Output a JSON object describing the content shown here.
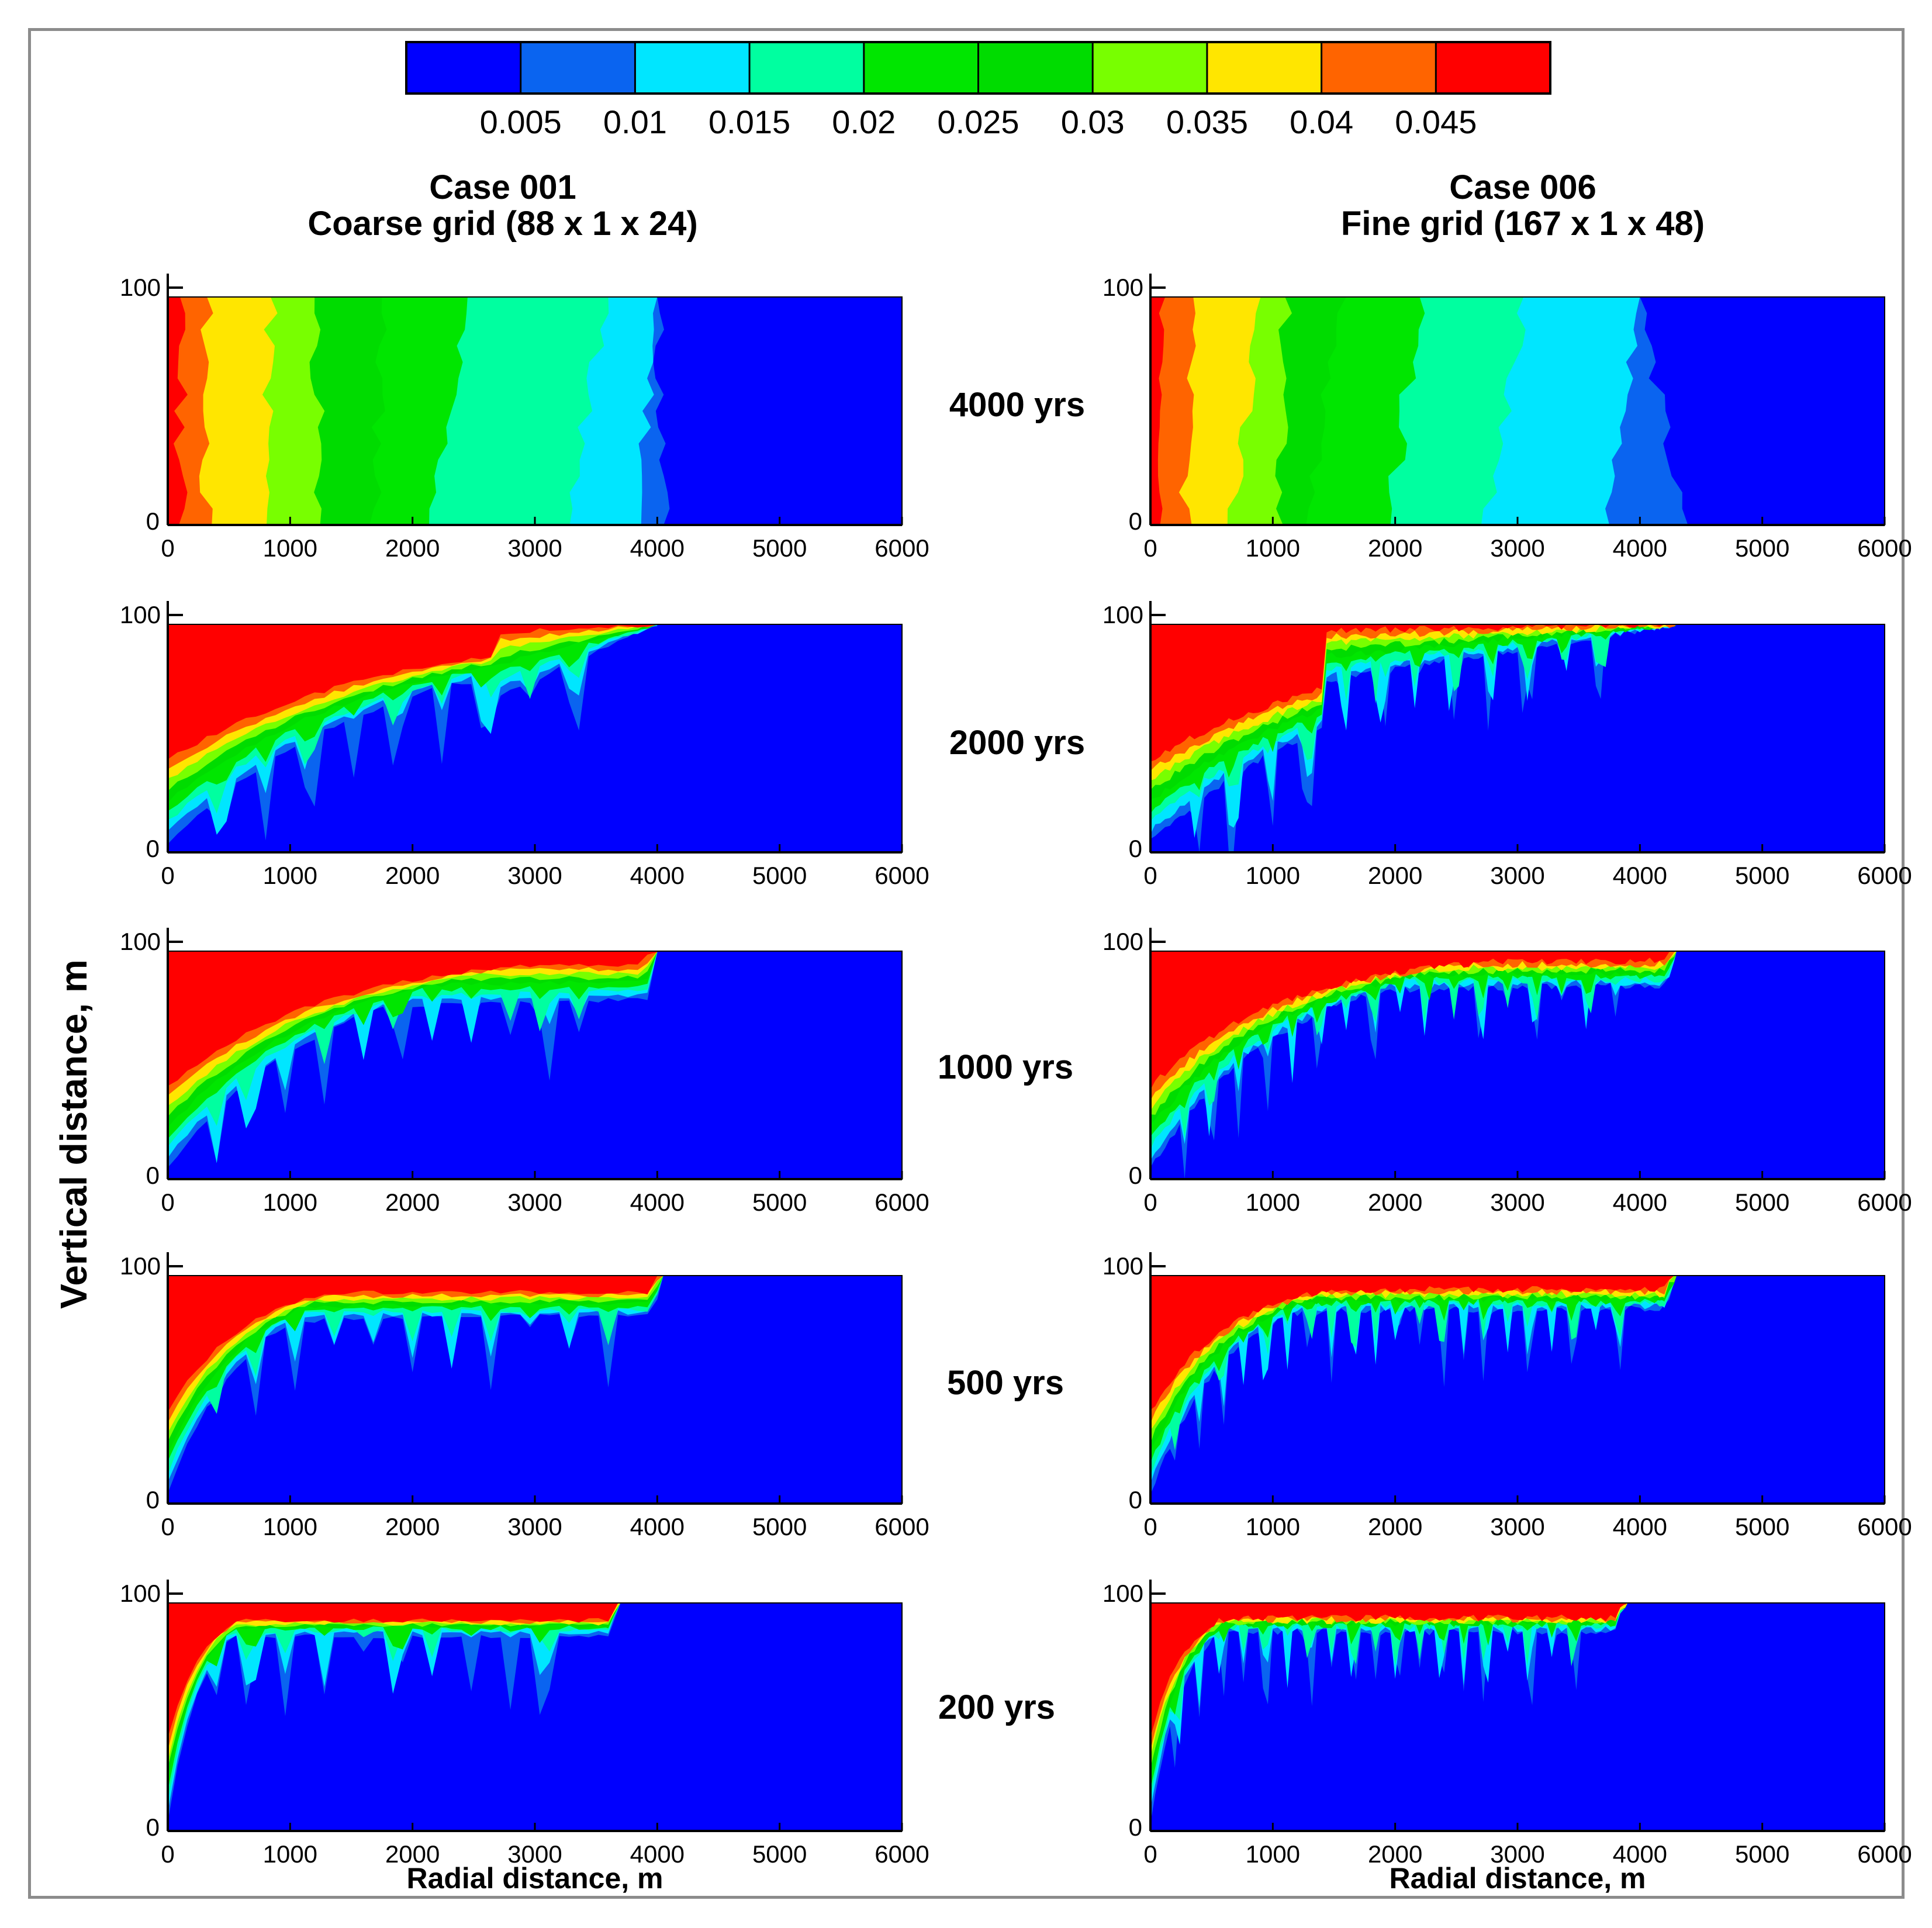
{
  "chart_data": {
    "type": "heatmap",
    "colorbar": {
      "colors": [
        "#0000ff",
        "#0a64f0",
        "#00e6ff",
        "#00ffa0",
        "#00e600",
        "#00dc00",
        "#78ff00",
        "#ffe600",
        "#ff6400",
        "#ff0000"
      ],
      "tick_labels": [
        "0.005",
        "0.01",
        "0.015",
        "0.02",
        "0.025",
        "0.03",
        "0.035",
        "0.04",
        "0.045"
      ],
      "levels": [
        0.005,
        0.01,
        0.015,
        0.02,
        0.025,
        0.03,
        0.035,
        0.04,
        0.045
      ]
    },
    "columns": [
      {
        "case": "Case 001",
        "grid": "Coarse grid (88 x 1 x 24)"
      },
      {
        "case": "Case 006",
        "grid": "Fine grid (167 x 1 x 48)"
      }
    ],
    "ylabel": "Vertical distance, m",
    "xlabel": "Radial distance, m",
    "xlim": [
      0,
      6000
    ],
    "ylim": [
      0,
      100
    ],
    "x_ticks": [
      "0",
      "1000",
      "2000",
      "3000",
      "4000",
      "5000",
      "6000"
    ],
    "y_ticks": [
      "0",
      "100"
    ],
    "rows": [
      {
        "time": "4000 yrs",
        "coarse": {
          "type": "band",
          "x": [
            0,
            110,
            310,
            800,
            1250,
            1700,
            2150,
            3250,
            3850,
            4050
          ],
          "top": [
            0,
            100,
            320,
            840,
            1200,
            1750,
            2450,
            3600,
            4000,
            4000
          ]
        },
        "fine": {
          "type": "band",
          "x": [
            0,
            100,
            280,
            650,
            1050,
            1250,
            1950,
            2750,
            3750,
            4350
          ],
          "top": [
            0,
            120,
            350,
            900,
            1100,
            1600,
            2200,
            3050,
            4000,
            4000
          ]
        }
      },
      {
        "time": "2000 yrs",
        "coarse": {
          "type": "plume",
          "front": 4000,
          "top_depth": 5,
          "top_lead": 2700,
          "decay": 1800,
          "shallow": 65,
          "spacing": 180
        },
        "fine": {
          "type": "plume",
          "front": 4300,
          "top_depth": 4,
          "top_lead": 1400,
          "decay": 1900,
          "shallow": 72,
          "spacing": 150
        }
      },
      {
        "time": "1000 yrs",
        "coarse": {
          "type": "plume",
          "front": 4000,
          "top_depth": 8,
          "top_lead": 3900,
          "decay": 1300,
          "shallow": 70,
          "spacing": 150
        },
        "fine": {
          "type": "plume",
          "front": 4300,
          "top_depth": 6,
          "top_lead": 4200,
          "decay": 1100,
          "shallow": 78,
          "spacing": 110
        }
      },
      {
        "time": "500 yrs",
        "coarse": {
          "type": "plume",
          "front": 4050,
          "top_depth": 12,
          "top_lead": 3950,
          "decay": 650,
          "shallow": 78,
          "spacing": 160
        },
        "fine": {
          "type": "plume",
          "front": 4300,
          "top_depth": 10,
          "top_lead": 4200,
          "decay": 650,
          "shallow": 82,
          "spacing": 90
        }
      },
      {
        "time": "200 yrs",
        "coarse": {
          "type": "plume",
          "front": 3700,
          "top_depth": 14,
          "top_lead": 3600,
          "decay": 280,
          "shallow": 88,
          "spacing": 150
        },
        "fine": {
          "type": "plume",
          "front": 3900,
          "top_depth": 12,
          "top_lead": 3800,
          "decay": 280,
          "shallow": 90,
          "spacing": 90
        }
      }
    ]
  }
}
